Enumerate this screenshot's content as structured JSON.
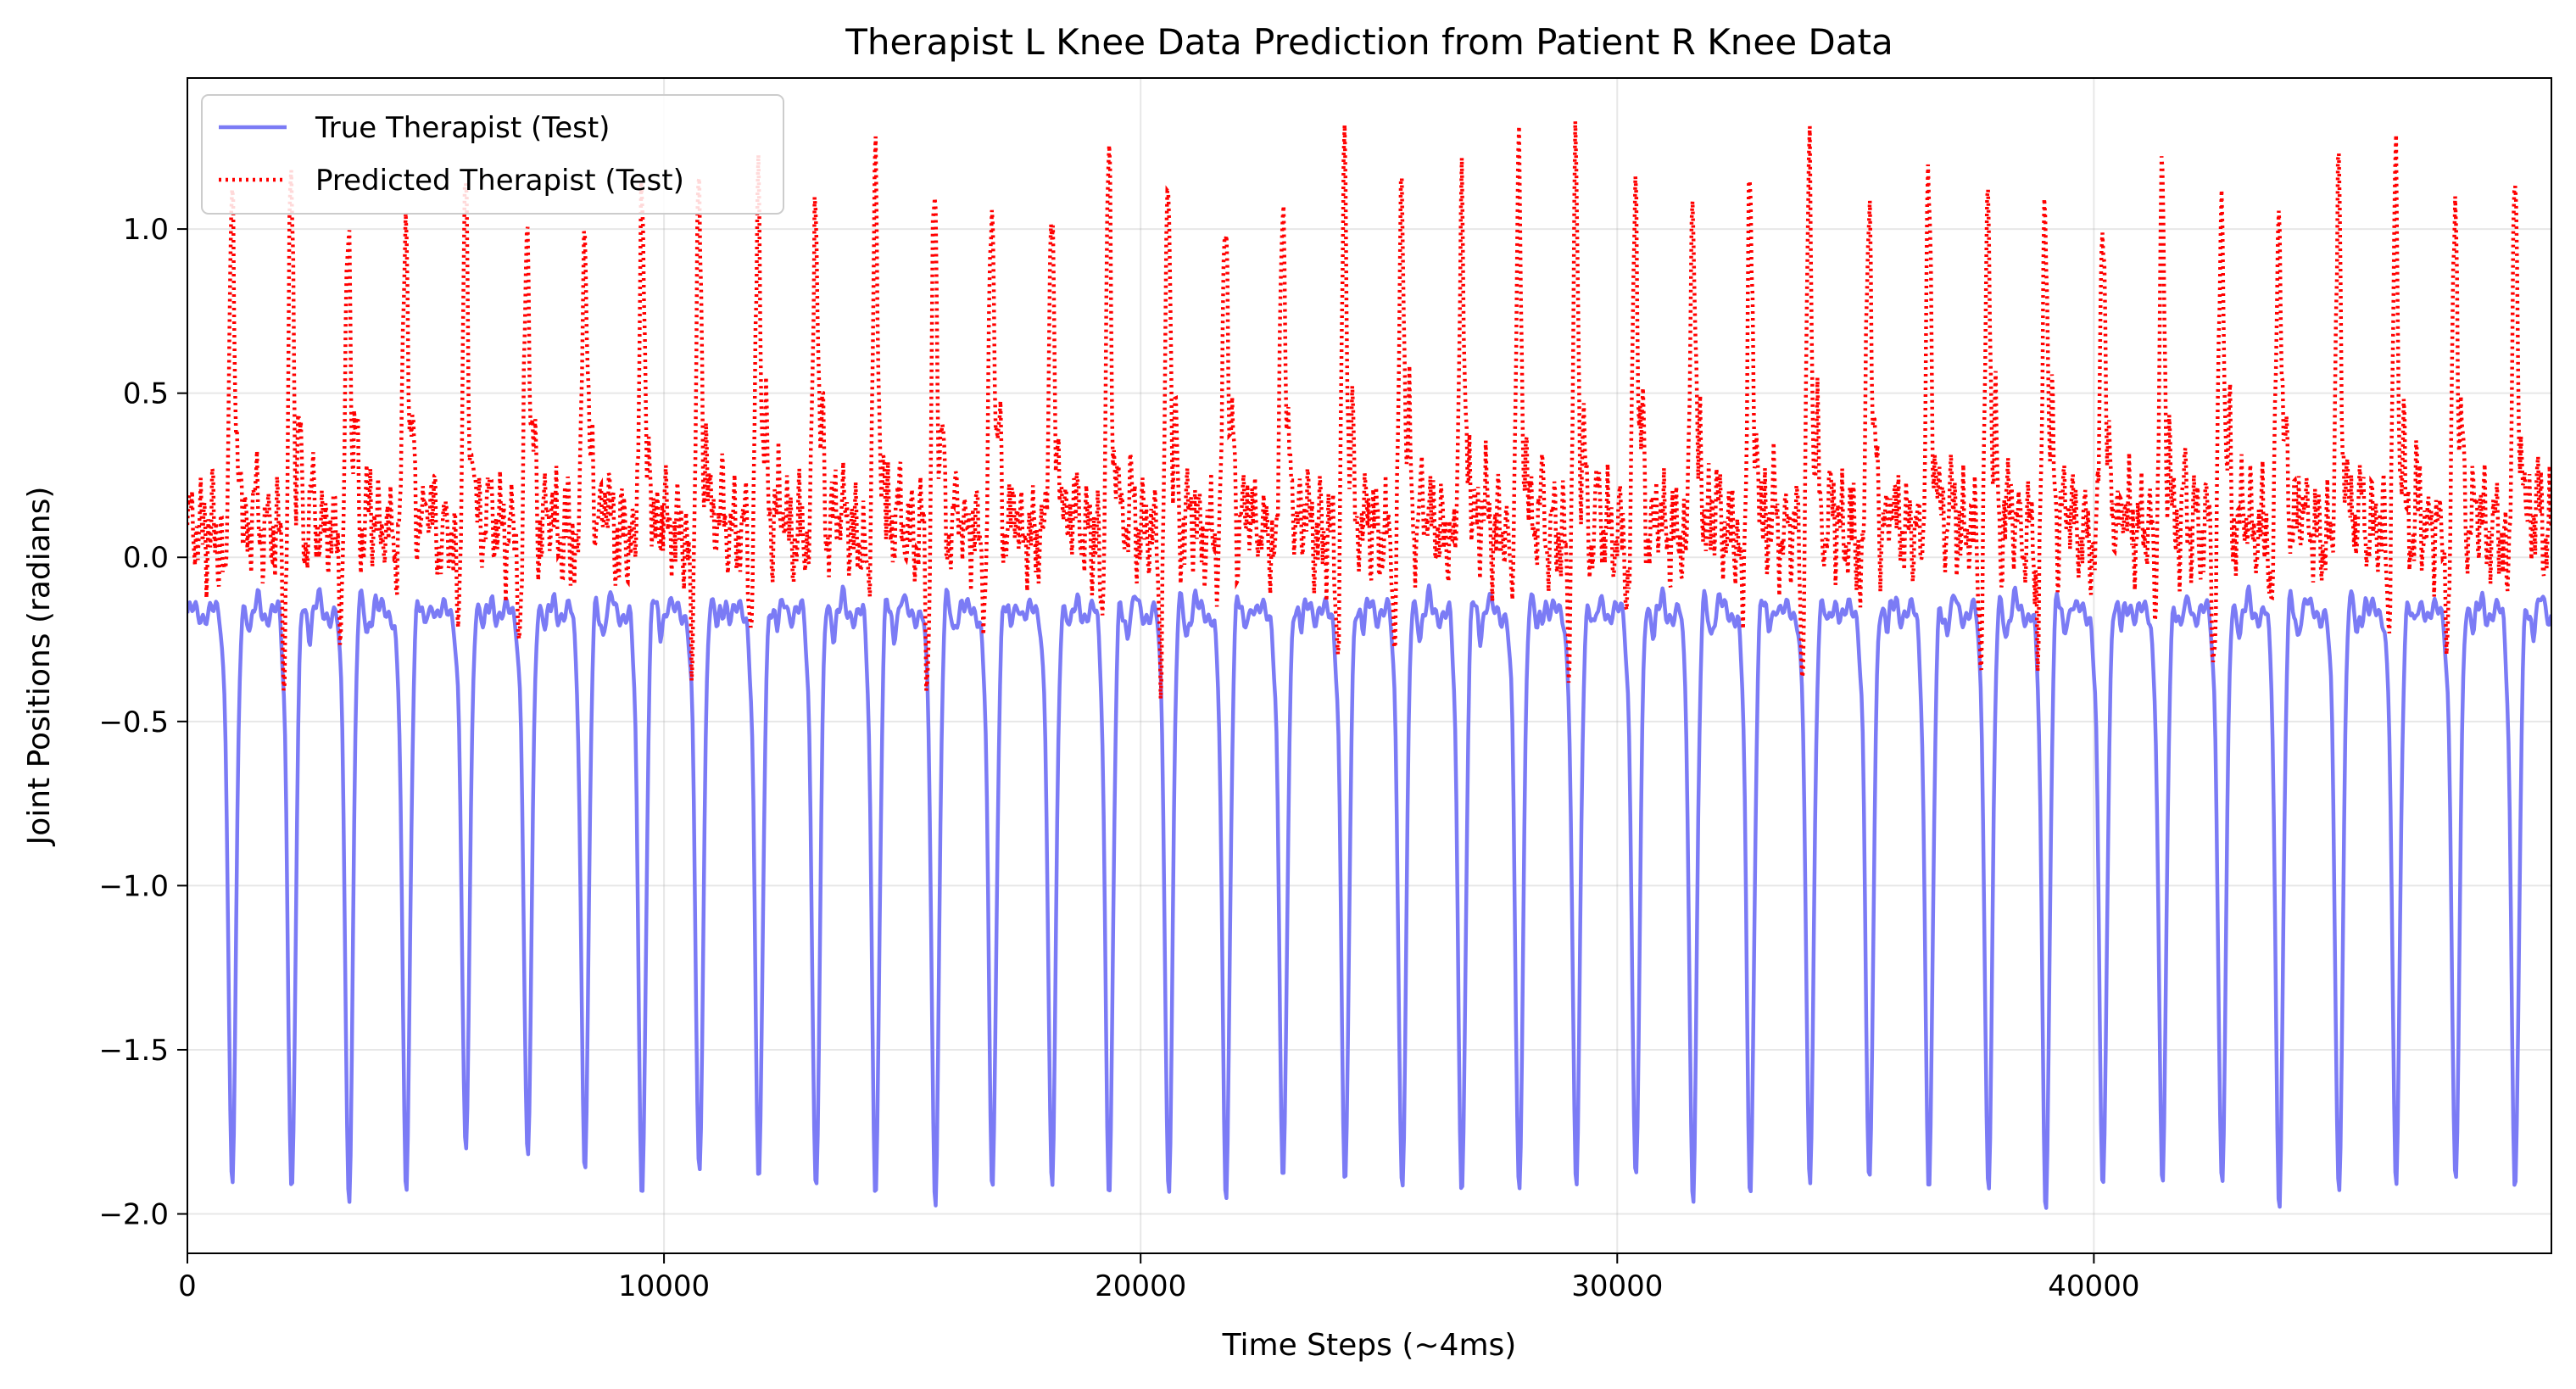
{
  "chart_data": {
    "type": "line",
    "title": "Therapist L Knee Data Prediction from Patient R Knee Data",
    "xlabel": "Time Steps (~4ms)",
    "ylabel": "Joint Positions (radians)",
    "xlim": [
      0,
      49600
    ],
    "ylim": [
      -2.12,
      1.46
    ],
    "x_ticks": [
      0,
      10000,
      20000,
      30000,
      40000
    ],
    "y_ticks": [
      -2.0,
      -1.5,
      -1.0,
      -0.5,
      0.0,
      0.5,
      1.0
    ],
    "y_tick_labels": [
      "−2.0",
      "−1.5",
      "−1.0",
      "−0.5",
      "0.0",
      "0.5",
      "1.0"
    ],
    "grid": true,
    "legend_position": "top-left",
    "cycle_starts": [
      900,
      2150,
      3350,
      4550,
      5800,
      7100,
      8300,
      9500,
      10700,
      11950,
      13150,
      14400,
      15650,
      16850,
      18100,
      19300,
      20550,
      21750,
      22950,
      24250,
      25450,
      26700,
      27900,
      29100,
      30350,
      31550,
      32750,
      34000,
      35250,
      36500,
      37750,
      38950,
      40150,
      41400,
      42650,
      43850,
      45100,
      46300,
      47550,
      48800
    ],
    "series": [
      {
        "name": "True Therapist (Test)",
        "color": "#7b7bf5",
        "style": "solid",
        "baseline": -0.17,
        "peak_max": -0.07,
        "trough_values": [
          -1.93,
          -1.94,
          -1.95,
          -1.93,
          -1.84,
          -1.86,
          -1.85,
          -1.93,
          -1.9,
          -1.92,
          -1.94,
          -1.92,
          -1.95,
          -1.93,
          -1.94,
          -1.93,
          -1.92,
          -1.94,
          -1.93,
          -1.94,
          -1.93,
          -1.92,
          -1.94,
          -1.93,
          -1.92,
          -1.94,
          -1.93,
          -1.92,
          -1.94,
          -1.93,
          -1.92,
          -1.96,
          -1.95,
          -1.92,
          -1.93,
          -1.95,
          -1.93,
          -1.92,
          -1.94,
          -1.93
        ]
      },
      {
        "name": "Predicted Therapist (Test)",
        "color": "#ff0000",
        "style": "dotted",
        "baseline": 0.08,
        "trough_min": -0.4,
        "peak_values": [
          1.13,
          1.14,
          1.05,
          1.09,
          1.12,
          1.08,
          1.06,
          1.13,
          1.1,
          1.14,
          1.13,
          1.17,
          1.18,
          1.15,
          1.08,
          1.2,
          1.17,
          1.16,
          1.19,
          1.2,
          1.21,
          1.1,
          1.16,
          1.18,
          1.19,
          1.15,
          1.17,
          1.19,
          1.16,
          1.15,
          1.13,
          1.14,
          1.12,
          1.15,
          1.14,
          1.13,
          1.16,
          1.13,
          1.15,
          1.12
        ]
      }
    ]
  }
}
